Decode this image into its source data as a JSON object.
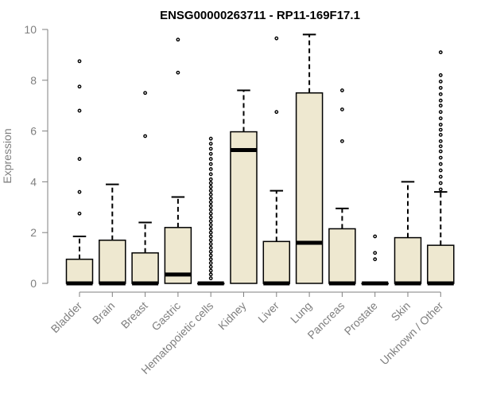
{
  "chart_data": {
    "type": "boxplot",
    "title": "ENSG00000263711 - RP11-169F17.1",
    "xlabel": "",
    "ylabel": "Expression",
    "ylim": [
      0,
      10
    ],
    "yticks": [
      0,
      2,
      4,
      6,
      8,
      10
    ],
    "grid": false,
    "legend": "none",
    "colors": {
      "box_fill": "#eee8d0",
      "stroke": "#000000",
      "axis": "#7f7f7f"
    },
    "categories": [
      "Bladder",
      "Brain",
      "Breast",
      "Gastric",
      "Hematopoietic cells",
      "Kidney",
      "Liver",
      "Lung",
      "Pancreas",
      "Prostate",
      "Skin",
      "Unknown / Other"
    ],
    "boxes": [
      {
        "q1": 0,
        "median": 0,
        "q3": 0.95,
        "whisker_low": 0,
        "whisker_high": 1.85,
        "outliers": [
          2.75,
          3.6,
          4.9,
          6.8,
          7.75,
          8.75
        ]
      },
      {
        "q1": 0,
        "median": 0,
        "q3": 1.7,
        "whisker_low": 0,
        "whisker_high": 3.9,
        "outliers": []
      },
      {
        "q1": 0,
        "median": 0,
        "q3": 1.2,
        "whisker_low": 0,
        "whisker_high": 2.4,
        "outliers": [
          5.8,
          7.5
        ]
      },
      {
        "q1": 0,
        "median": 0.35,
        "q3": 2.2,
        "whisker_low": 0,
        "whisker_high": 3.4,
        "outliers": [
          8.3,
          9.6
        ]
      },
      {
        "q1": 0,
        "median": 0,
        "q3": 0,
        "whisker_low": 0,
        "whisker_high": 0,
        "outliers": [
          0.2,
          0.35,
          0.5,
          0.65,
          0.8,
          0.95,
          1.1,
          1.25,
          1.4,
          1.55,
          1.7,
          1.85,
          2.0,
          2.15,
          2.3,
          2.45,
          2.6,
          2.75,
          2.9,
          3.05,
          3.2,
          3.35,
          3.5,
          3.65,
          3.8,
          3.95,
          4.1,
          4.3,
          4.5,
          4.7,
          4.9,
          5.1,
          5.3,
          5.5,
          5.7
        ]
      },
      {
        "q1": 0,
        "median": 5.25,
        "q3": 5.97,
        "whisker_low": 0,
        "whisker_high": 7.6,
        "outliers": []
      },
      {
        "q1": 0,
        "median": 0,
        "q3": 1.65,
        "whisker_low": 0,
        "whisker_high": 3.65,
        "outliers": [
          6.75,
          9.65
        ]
      },
      {
        "q1": 0,
        "median": 1.6,
        "q3": 7.5,
        "whisker_low": 0,
        "whisker_high": 9.8,
        "outliers": []
      },
      {
        "q1": 0,
        "median": 0,
        "q3": 2.15,
        "whisker_low": 0,
        "whisker_high": 2.95,
        "outliers": [
          5.6,
          6.85,
          7.6
        ]
      },
      {
        "q1": 0,
        "median": 0,
        "q3": 0,
        "whisker_low": 0,
        "whisker_high": 0,
        "outliers": [
          0.95,
          1.2,
          1.85
        ]
      },
      {
        "q1": 0,
        "median": 0,
        "q3": 1.8,
        "whisker_low": 0,
        "whisker_high": 4.0,
        "outliers": []
      },
      {
        "q1": 0,
        "median": 0,
        "q3": 1.5,
        "whisker_low": 0,
        "whisker_high": 3.6,
        "outliers": [
          3.7,
          3.95,
          4.2,
          4.45,
          4.7,
          4.95,
          5.2,
          5.4,
          5.6,
          5.85,
          6.05,
          6.25,
          6.5,
          6.75,
          7.0,
          7.2,
          7.45,
          7.7,
          7.95,
          8.2,
          9.1
        ]
      }
    ]
  }
}
